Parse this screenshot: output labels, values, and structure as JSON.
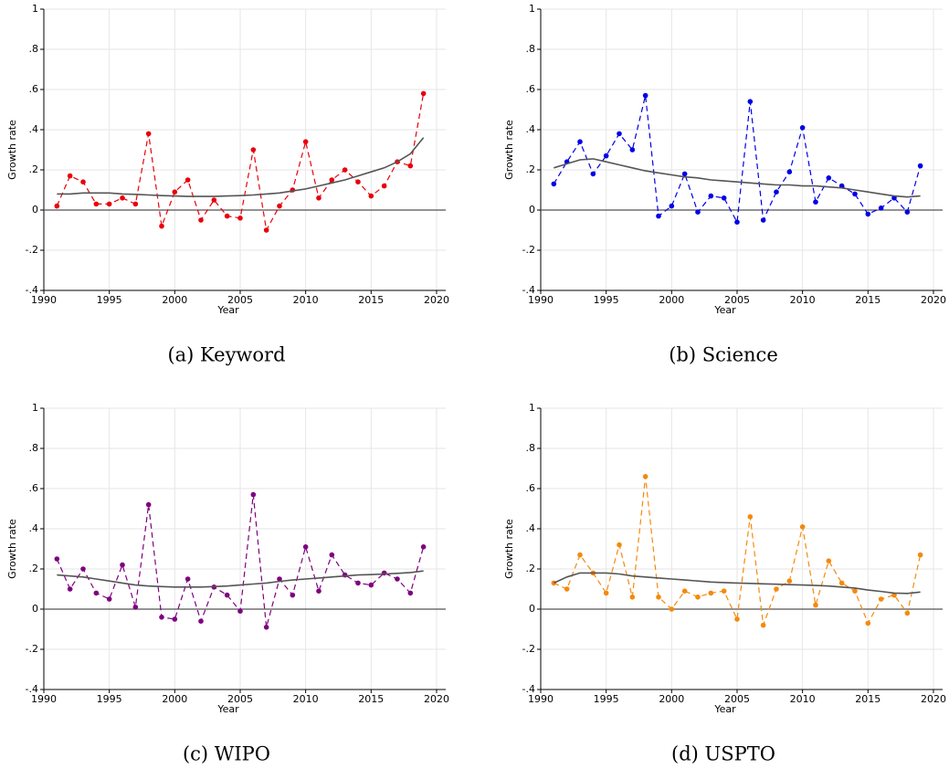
{
  "chart_data": [
    {
      "type": "line",
      "caption": "(a) Keyword",
      "xlabel": "Year",
      "ylabel": "Growth rate",
      "x": [
        1991,
        1992,
        1993,
        1994,
        1995,
        1996,
        1997,
        1998,
        1999,
        2000,
        2001,
        2002,
        2003,
        2004,
        2005,
        2006,
        2007,
        2008,
        2009,
        2010,
        2011,
        2012,
        2013,
        2014,
        2015,
        2016,
        2017,
        2018,
        2019
      ],
      "series": [
        {
          "color": "#e8000b",
          "linestyle": "dashed",
          "markers": true,
          "values": [
            0.02,
            0.17,
            0.14,
            0.03,
            0.03,
            0.06,
            0.03,
            0.38,
            -0.08,
            0.09,
            0.15,
            -0.05,
            0.05,
            -0.03,
            -0.04,
            0.3,
            -0.1,
            0.02,
            0.1,
            0.34,
            0.06,
            0.15,
            0.2,
            0.14,
            0.07,
            0.12,
            0.24,
            0.22,
            0.58
          ]
        },
        {
          "color": "#555555",
          "linestyle": "solid",
          "markers": false,
          "values": [
            0.08,
            0.08,
            0.085,
            0.085,
            0.085,
            0.08,
            0.078,
            0.075,
            0.072,
            0.07,
            0.068,
            0.068,
            0.068,
            0.07,
            0.072,
            0.075,
            0.08,
            0.085,
            0.095,
            0.105,
            0.12,
            0.135,
            0.15,
            0.17,
            0.19,
            0.21,
            0.24,
            0.28,
            0.36
          ]
        }
      ],
      "reference_line": 0,
      "xlim": [
        1990,
        2020.7
      ],
      "xticks": [
        1990,
        1995,
        2000,
        2005,
        2010,
        2015,
        2020
      ],
      "ylim": [
        -0.4,
        1
      ],
      "yticks": [
        {
          "value": -0.4,
          "label": "-.4"
        },
        {
          "value": -0.2,
          "label": "-.2"
        },
        0,
        {
          "value": 0.2,
          "label": ".2"
        },
        {
          "value": 0.4,
          "label": ".4"
        },
        {
          "value": 0.6,
          "label": ".6"
        },
        {
          "value": 0.8,
          "label": ".8"
        },
        1
      ],
      "grid": true
    },
    {
      "type": "line",
      "caption": "(b) Science",
      "xlabel": "Year",
      "ylabel": "Growth rate",
      "x": [
        1991,
        1992,
        1993,
        1994,
        1995,
        1996,
        1997,
        1998,
        1999,
        2000,
        2001,
        2002,
        2003,
        2004,
        2005,
        2006,
        2007,
        2008,
        2009,
        2010,
        2011,
        2012,
        2013,
        2014,
        2015,
        2016,
        2017,
        2018,
        2019
      ],
      "series": [
        {
          "color": "#0000e6",
          "linestyle": "dashed",
          "markers": true,
          "values": [
            0.13,
            0.24,
            0.34,
            0.18,
            0.27,
            0.38,
            0.3,
            0.57,
            -0.03,
            0.02,
            0.18,
            -0.01,
            0.07,
            0.06,
            -0.06,
            0.54,
            -0.05,
            0.09,
            0.19,
            0.41,
            0.04,
            0.16,
            0.12,
            0.08,
            -0.02,
            0.01,
            0.06,
            -0.01,
            0.22
          ]
        },
        {
          "color": "#555555",
          "linestyle": "solid",
          "markers": false,
          "values": [
            0.21,
            0.23,
            0.25,
            0.255,
            0.24,
            0.225,
            0.21,
            0.195,
            0.185,
            0.175,
            0.165,
            0.16,
            0.15,
            0.145,
            0.14,
            0.135,
            0.13,
            0.125,
            0.125,
            0.12,
            0.12,
            0.115,
            0.11,
            0.1,
            0.09,
            0.08,
            0.07,
            0.065,
            0.07
          ]
        }
      ],
      "reference_line": 0,
      "xlim": [
        1990,
        2020.7
      ],
      "xticks": [
        1990,
        1995,
        2000,
        2005,
        2010,
        2015,
        2020
      ],
      "ylim": [
        -0.4,
        1
      ],
      "yticks": [
        {
          "value": -0.4,
          "label": "-.4"
        },
        {
          "value": -0.2,
          "label": "-.2"
        },
        0,
        {
          "value": 0.2,
          "label": ".2"
        },
        {
          "value": 0.4,
          "label": ".4"
        },
        {
          "value": 0.6,
          "label": ".6"
        },
        {
          "value": 0.8,
          "label": ".8"
        },
        1
      ],
      "grid": true
    },
    {
      "type": "line",
      "caption": "(c) WIPO",
      "xlabel": "Year",
      "ylabel": "Growth rate",
      "x": [
        1991,
        1992,
        1993,
        1994,
        1995,
        1996,
        1997,
        1998,
        1999,
        2000,
        2001,
        2002,
        2003,
        2004,
        2005,
        2006,
        2007,
        2008,
        2009,
        2010,
        2011,
        2012,
        2013,
        2014,
        2015,
        2016,
        2017,
        2018,
        2019
      ],
      "series": [
        {
          "color": "#7f007f",
          "linestyle": "dashed",
          "markers": true,
          "values": [
            0.25,
            0.1,
            0.2,
            0.08,
            0.05,
            0.22,
            0.01,
            0.52,
            -0.04,
            -0.05,
            0.15,
            -0.06,
            0.11,
            0.07,
            -0.01,
            0.57,
            -0.09,
            0.15,
            0.07,
            0.31,
            0.09,
            0.27,
            0.17,
            0.13,
            0.12,
            0.18,
            0.15,
            0.08,
            0.31
          ]
        },
        {
          "color": "#555555",
          "linestyle": "solid",
          "markers": false,
          "values": [
            0.17,
            0.165,
            0.16,
            0.15,
            0.14,
            0.13,
            0.12,
            0.115,
            0.112,
            0.11,
            0.11,
            0.11,
            0.112,
            0.115,
            0.12,
            0.125,
            0.13,
            0.138,
            0.145,
            0.15,
            0.155,
            0.16,
            0.165,
            0.17,
            0.172,
            0.175,
            0.178,
            0.182,
            0.19
          ]
        }
      ],
      "reference_line": 0,
      "xlim": [
        1990,
        2020.7
      ],
      "xticks": [
        1990,
        1995,
        2000,
        2005,
        2010,
        2015,
        2020
      ],
      "ylim": [
        -0.4,
        1
      ],
      "yticks": [
        {
          "value": -0.4,
          "label": "-.4"
        },
        {
          "value": -0.2,
          "label": "-.2"
        },
        0,
        {
          "value": 0.2,
          "label": ".2"
        },
        {
          "value": 0.4,
          "label": ".4"
        },
        {
          "value": 0.6,
          "label": ".6"
        },
        {
          "value": 0.8,
          "label": ".8"
        },
        1
      ],
      "grid": true
    },
    {
      "type": "line",
      "caption": "(d) USPTO",
      "xlabel": "Year",
      "ylabel": "Growth rate",
      "x": [
        1991,
        1992,
        1993,
        1994,
        1995,
        1996,
        1997,
        1998,
        1999,
        2000,
        2001,
        2002,
        2003,
        2004,
        2005,
        2006,
        2007,
        2008,
        2009,
        2010,
        2011,
        2012,
        2013,
        2014,
        2015,
        2016,
        2017,
        2018,
        2019
      ],
      "series": [
        {
          "color": "#f5890c",
          "linestyle": "dashed",
          "markers": true,
          "values": [
            0.13,
            0.1,
            0.27,
            0.18,
            0.08,
            0.32,
            0.06,
            0.66,
            0.06,
            0.0,
            0.09,
            0.06,
            0.08,
            0.09,
            -0.05,
            0.46,
            -0.08,
            0.1,
            0.14,
            0.41,
            0.02,
            0.24,
            0.13,
            0.09,
            -0.07,
            0.05,
            0.07,
            -0.02,
            0.27
          ]
        },
        {
          "color": "#555555",
          "linestyle": "solid",
          "markers": false,
          "values": [
            0.13,
            0.16,
            0.18,
            0.18,
            0.18,
            0.175,
            0.165,
            0.16,
            0.155,
            0.15,
            0.145,
            0.14,
            0.135,
            0.132,
            0.13,
            0.128,
            0.126,
            0.124,
            0.122,
            0.12,
            0.118,
            0.115,
            0.11,
            0.105,
            0.095,
            0.088,
            0.08,
            0.078,
            0.085
          ]
        }
      ],
      "reference_line": 0,
      "xlim": [
        1990,
        2020.7
      ],
      "xticks": [
        1990,
        1995,
        2000,
        2005,
        2010,
        2015,
        2020
      ],
      "ylim": [
        -0.4,
        1
      ],
      "yticks": [
        {
          "value": -0.4,
          "label": "-.4"
        },
        {
          "value": -0.2,
          "label": "-.2"
        },
        0,
        {
          "value": 0.2,
          "label": ".2"
        },
        {
          "value": 0.4,
          "label": ".4"
        },
        {
          "value": 0.6,
          "label": ".6"
        },
        {
          "value": 0.8,
          "label": ".8"
        },
        1
      ],
      "grid": true
    }
  ]
}
